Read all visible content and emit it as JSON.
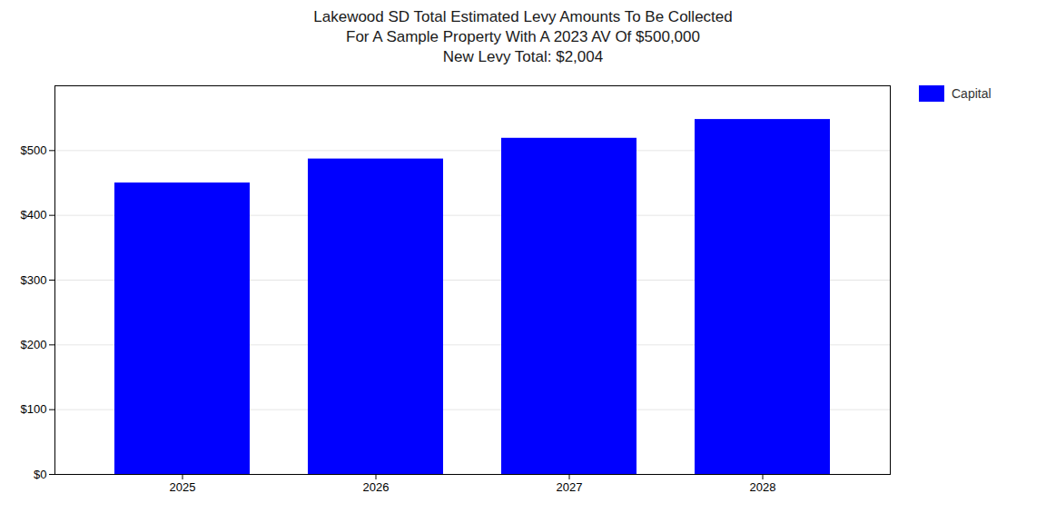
{
  "chart_data": {
    "type": "bar",
    "title": "Lakewood SD Total Estimated Levy Amounts To Be Collected\nFor A Sample Property With A 2023 AV Of $500,000\nNew Levy Total: $2,004",
    "categories": [
      "2025",
      "2026",
      "2027",
      "2028"
    ],
    "series": [
      {
        "name": "Capital",
        "color": "#0000ff",
        "values": [
          450,
          487,
          519,
          548
        ]
      }
    ],
    "ylim": [
      0,
      600
    ],
    "yticks": [
      {
        "value": 0,
        "label": "$0"
      },
      {
        "value": 100,
        "label": "$100"
      },
      {
        "value": 200,
        "label": "$200"
      },
      {
        "value": 300,
        "label": "$300"
      },
      {
        "value": 400,
        "label": "$400"
      },
      {
        "value": 500,
        "label": "$500"
      }
    ],
    "grid": true,
    "legend": "right"
  }
}
